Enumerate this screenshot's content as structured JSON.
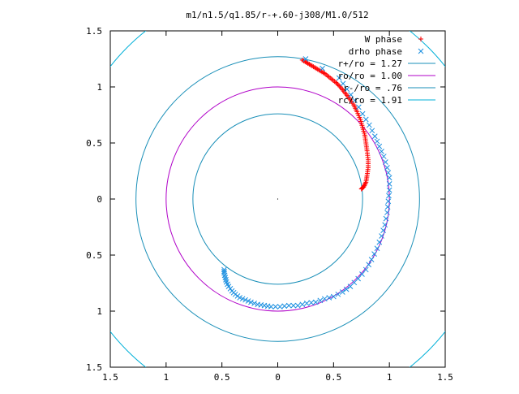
{
  "chart_data": {
    "type": "scatter",
    "title": "m1/n1.5/q1.85/r-+.60-j308/M1.0/512",
    "xlim": [
      -1.5,
      1.5
    ],
    "ylim": [
      -1.5,
      1.5
    ],
    "x_tick_labels": [
      "1.5",
      "1",
      "0.5",
      "0",
      "0.5",
      "1",
      "1.5"
    ],
    "y_tick_labels": [
      "1.5",
      "1",
      "0.5",
      "0",
      "0.5",
      "1",
      "1.5"
    ],
    "legend_position": "top-right",
    "series": [
      {
        "name": "W phase",
        "kind": "points",
        "marker": "+",
        "color": "#ff0000",
        "points": [
          [
            0.22,
            1.24
          ],
          [
            0.27,
            1.21
          ],
          [
            0.32,
            1.18
          ],
          [
            0.37,
            1.15
          ],
          [
            0.42,
            1.12
          ],
          [
            0.47,
            1.08
          ],
          [
            0.52,
            1.04
          ],
          [
            0.56,
            1.0
          ],
          [
            0.6,
            0.95
          ],
          [
            0.64,
            0.9
          ],
          [
            0.68,
            0.84
          ],
          [
            0.71,
            0.78
          ],
          [
            0.74,
            0.71
          ],
          [
            0.76,
            0.64
          ],
          [
            0.78,
            0.57
          ],
          [
            0.79,
            0.5
          ],
          [
            0.8,
            0.43
          ],
          [
            0.81,
            0.35
          ],
          [
            0.81,
            0.28
          ],
          [
            0.8,
            0.21
          ],
          [
            0.79,
            0.15
          ],
          [
            0.77,
            0.11
          ],
          [
            0.75,
            0.09
          ]
        ]
      },
      {
        "name": "drho phase",
        "kind": "points",
        "marker": "x",
        "color": "#1a8fe0",
        "points": [
          [
            0.25,
            1.25
          ],
          [
            0.55,
            1.08
          ],
          [
            0.62,
            0.98
          ],
          [
            0.69,
            0.88
          ],
          [
            0.76,
            0.76
          ],
          [
            0.82,
            0.66
          ],
          [
            0.87,
            0.56
          ],
          [
            0.91,
            0.47
          ],
          [
            0.95,
            0.38
          ],
          [
            0.98,
            0.28
          ],
          [
            1.0,
            0.19
          ],
          [
            1.0,
            0.08
          ],
          [
            0.99,
            -0.02
          ],
          [
            0.98,
            -0.12
          ],
          [
            0.96,
            -0.23
          ],
          [
            0.93,
            -0.33
          ],
          [
            0.89,
            -0.44
          ],
          [
            0.84,
            -0.54
          ],
          [
            0.79,
            -0.63
          ],
          [
            0.72,
            -0.71
          ],
          [
            0.65,
            -0.78
          ],
          [
            0.58,
            -0.83
          ],
          [
            0.5,
            -0.87
          ],
          [
            0.42,
            -0.89
          ],
          [
            0.34,
            -0.92
          ],
          [
            0.26,
            -0.93
          ],
          [
            0.18,
            -0.95
          ],
          [
            0.1,
            -0.95
          ],
          [
            0.02,
            -0.96
          ],
          [
            -0.06,
            -0.96
          ],
          [
            -0.12,
            -0.95
          ],
          [
            -0.18,
            -0.94
          ],
          [
            -0.24,
            -0.92
          ],
          [
            -0.29,
            -0.9
          ],
          [
            -0.34,
            -0.88
          ],
          [
            -0.38,
            -0.85
          ],
          [
            -0.41,
            -0.82
          ],
          [
            -0.44,
            -0.78
          ],
          [
            -0.46,
            -0.74
          ],
          [
            -0.47,
            -0.7
          ],
          [
            -0.48,
            -0.66
          ],
          [
            -0.48,
            -0.63
          ]
        ]
      },
      {
        "name": "r+/ro = 1.27",
        "kind": "circle",
        "radius": 1.27,
        "color": "#1a8fb8"
      },
      {
        "name": "ro/ro = 1.00",
        "kind": "circle",
        "radius": 1.0,
        "color": "#b000c8"
      },
      {
        "name": "r-/ro = .76",
        "kind": "circle",
        "radius": 0.76,
        "color": "#1a8fb8"
      },
      {
        "name": "rc/ro = 1.91",
        "kind": "circle",
        "radius": 1.91,
        "color": "#00b0d8"
      }
    ]
  }
}
